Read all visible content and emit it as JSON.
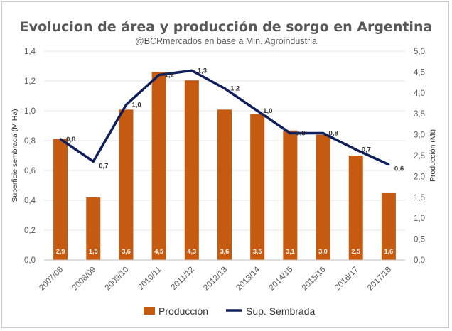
{
  "chart_data": {
    "type": "bar+line",
    "title": "Evolucion de área y producción de sorgo en Argentina",
    "subtitle": "@BCRmercados en base a Min. Agroindustria",
    "categories": [
      "2007/08",
      "2008/09",
      "2009/10",
      "2010/11",
      "2011/12",
      "2012/13",
      "2013/14",
      "2014/15",
      "2015/16",
      "2016/17",
      "2017/18"
    ],
    "ylabel_left": "Superficie sembrada (M Ha)",
    "ylabel_right": "Producción (Mt)",
    "ylim_left": [
      0,
      1.4
    ],
    "ylim_right": [
      0,
      5.0
    ],
    "yticks_left": [
      "0,0",
      "0,2",
      "0,4",
      "0,6",
      "0,8",
      "1,0",
      "1,2",
      "1,4"
    ],
    "yticks_right": [
      "0,0",
      "0,5",
      "1,0",
      "1,5",
      "2,0",
      "2,5",
      "3,0",
      "3,5",
      "4,0",
      "4,5",
      "5,0"
    ],
    "grid": true,
    "legend_position": "bottom",
    "series": [
      {
        "name": "Producción",
        "type": "bar",
        "axis": "right",
        "color": "#C55A11",
        "values": [
          2.9,
          1.5,
          3.6,
          4.5,
          4.3,
          3.6,
          3.5,
          3.1,
          3.0,
          2.5,
          1.6
        ],
        "labels": [
          "2,9",
          "1,5",
          "3,6",
          "4,5",
          "4,3",
          "3,6",
          "3,5",
          "3,1",
          "3,0",
          "2,5",
          "1,6"
        ]
      },
      {
        "name": "Sup. Sembrada",
        "type": "line",
        "axis": "left",
        "color": "#0E1F5B",
        "values": [
          0.81,
          0.66,
          1.04,
          1.24,
          1.27,
          1.15,
          1.0,
          0.85,
          0.85,
          0.74,
          0.64
        ],
        "labels": [
          "0,8",
          "0,7",
          "1,0",
          "1,2",
          "1,3",
          "1,2",
          "1,0",
          "0,8",
          "0,8",
          "0,7",
          "0,6"
        ]
      }
    ]
  }
}
